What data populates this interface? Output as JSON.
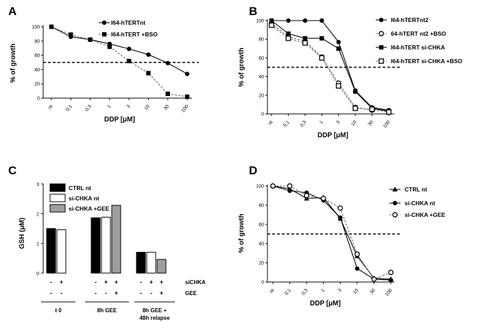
{
  "chart_data": [
    {
      "panel": "A",
      "type": "line",
      "xlabel": "DDP [μM]",
      "ylabel": "% of growth",
      "ylim": [
        0,
        100
      ],
      "yticks": [
        "0",
        "20",
        "40",
        "60",
        "80",
        "100"
      ],
      "categories": [
        "nt",
        "0,1",
        "0,3",
        "1",
        "3",
        "10",
        "30",
        "100"
      ],
      "threshold": 50,
      "series": [
        {
          "name": "I64-hTERTnt",
          "marker": "circle-filled",
          "line": "solid",
          "values": [
            100,
            86,
            82,
            76,
            69,
            61,
            49,
            34
          ]
        },
        {
          "name": "I64-hTERT +BSO",
          "marker": "square-filled",
          "line": "dashed",
          "values": [
            100,
            89,
            82,
            72,
            52,
            35,
            6,
            2
          ]
        }
      ]
    },
    {
      "panel": "B",
      "type": "line",
      "xlabel": "DDP [μM]",
      "ylabel": "% of growth",
      "ylim": [
        0,
        100
      ],
      "yticks": [
        "0",
        "20",
        "40",
        "60",
        "80",
        "100"
      ],
      "categories": [
        "nt",
        "0,1",
        "0,3",
        "1",
        "3",
        "10",
        "30",
        "100"
      ],
      "threshold": 50,
      "series": [
        {
          "name": "I64-hTERTnt2",
          "marker": "circle-filled",
          "line": "solid",
          "values": [
            100,
            100,
            100,
            100,
            77,
            25,
            7,
            4
          ]
        },
        {
          "name": "64-hTERT nt2 +BSO",
          "marker": "circle-open",
          "line": "dashed",
          "values": [
            97,
            83,
            78,
            61,
            33,
            7,
            4,
            3
          ]
        },
        {
          "name": "I64-hTERT si-CHKA",
          "marker": "square-filled",
          "line": "solid",
          "values": [
            100,
            86,
            81,
            81,
            70,
            24,
            6,
            3
          ]
        },
        {
          "name": "I64-hTERT  si-CHKA +BSO",
          "marker": "square-open",
          "line": "dashed",
          "values": [
            95,
            81,
            76,
            60,
            30,
            6,
            5,
            2
          ]
        }
      ]
    },
    {
      "panel": "C",
      "type": "bar",
      "ylabel": "GSH (μM)",
      "ylim": [
        0,
        3
      ],
      "yticks": [
        "0",
        "1",
        "2",
        "3"
      ],
      "row_labels": [
        "siCHKA",
        "GEE"
      ],
      "series": [
        {
          "name": "CTRL nt",
          "color": "#000000"
        },
        {
          "name": "si-CHKA nt",
          "color": "#ffffff"
        },
        {
          "name": "si-CHKA +GEE",
          "color": "#9e9e9e"
        }
      ],
      "groups": [
        {
          "label": "t 0",
          "bars": [
            {
              "series": 0,
              "value": 1.5,
              "siCHKA": "-",
              "GEE": "-"
            },
            {
              "series": 1,
              "value": 1.46,
              "siCHKA": "+",
              "GEE": "-"
            }
          ]
        },
        {
          "label": "8h GEE",
          "bars": [
            {
              "series": 0,
              "value": 1.86,
              "siCHKA": "-",
              "GEE": "-"
            },
            {
              "series": 1,
              "value": 1.88,
              "siCHKA": "+",
              "GEE": "-"
            },
            {
              "series": 2,
              "value": 2.28,
              "siCHKA": "+",
              "GEE": "+"
            }
          ]
        },
        {
          "label": "8h GEE +",
          "label2": "48h relapse",
          "bars": [
            {
              "series": 0,
              "value": 0.7,
              "siCHKA": "-",
              "GEE": "-"
            },
            {
              "series": 1,
              "value": 0.7,
              "siCHKA": "+",
              "GEE": "-"
            },
            {
              "series": 2,
              "value": 0.46,
              "siCHKA": "+",
              "GEE": "+"
            }
          ]
        }
      ]
    },
    {
      "panel": "D",
      "type": "line",
      "xlabel": "DDP [μM]",
      "ylabel": "% of growth",
      "ylim": [
        0,
        100
      ],
      "yticks": [
        "0",
        "20",
        "40",
        "60",
        "80",
        "100"
      ],
      "categories": [
        "nt",
        "0,1",
        "0,3",
        "1",
        "3",
        "10",
        "30",
        "100"
      ],
      "threshold": 50,
      "series": [
        {
          "name": "CTRL nt",
          "marker": "triangle-filled",
          "line": "solid",
          "values": [
            100,
            97,
            87,
            88,
            66,
            27,
            4,
            3
          ]
        },
        {
          "name": "si-CHKA nt",
          "marker": "circle-filled",
          "line": "solid",
          "values": [
            100,
            95,
            93,
            85,
            67,
            14,
            3,
            2
          ]
        },
        {
          "name": "si-CHKA +GEE",
          "marker": "circle-open",
          "line": "dashed",
          "values": [
            100,
            100,
            90,
            87,
            77,
            29,
            3,
            10
          ]
        }
      ]
    }
  ]
}
